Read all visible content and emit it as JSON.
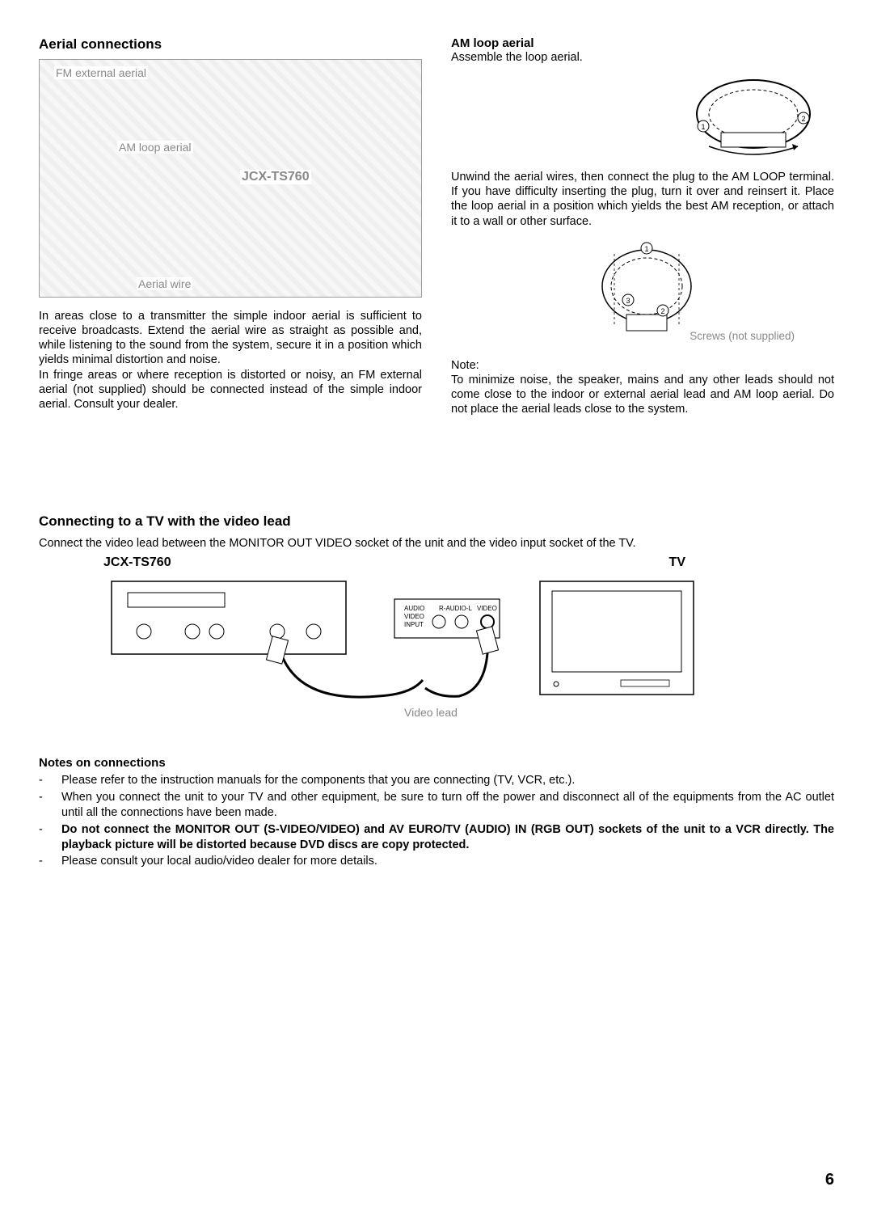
{
  "page_number": "6",
  "aerial": {
    "heading": "Aerial connections",
    "labels": {
      "fm_external": "FM external aerial",
      "am_loop": "AM loop aerial",
      "device": "JCX-TS760",
      "aerial_wire": "Aerial wire"
    },
    "left_paragraph_1": "In areas close to a transmitter the simple indoor aerial is sufficient to receive broadcasts. Extend the aerial wire as straight as possible and, while listening to the sound from the system, secure it in a position which yields minimal distortion and noise.",
    "left_paragraph_2": "In fringe areas or where reception is distorted or noisy, an FM external aerial (not supplied) should be connected instead of the simple indoor aerial. Consult your dealer."
  },
  "am_loop": {
    "title": "AM loop aerial",
    "assemble_text": "Assemble the loop aerial.",
    "unwind_text": "Unwind the aerial wires, then connect the plug to the AM LOOP terminal. If you have difficulty inserting the plug, turn it over and reinsert it. Place the loop aerial in a position which yields the best AM reception, or attach it to a wall or other surface.",
    "screws_label": "Screws (not supplied)",
    "note_label": "Note:",
    "note_text": "To minimize noise, the speaker, mains and any other leads should not come close to the indoor or external aerial lead and AM loop aerial. Do not place the aerial leads close to the system."
  },
  "tv": {
    "heading": "Connecting to a TV with the video lead",
    "intro": "Connect the video lead between the MONITOR OUT VIDEO socket of the unit and the video input socket of the TV.",
    "device_label": "JCX-TS760",
    "tv_label": "TV",
    "video_lead_label": "Video lead"
  },
  "notes": {
    "title": "Notes on connections",
    "items": [
      {
        "text": "Please refer to the instruction manuals for the components that you are connecting (TV, VCR, etc.).",
        "bold": false
      },
      {
        "text": "When you connect the unit to your TV and other equipment, be sure to turn off the power and disconnect all of the equipments from the AC outlet until all the connections have been made.",
        "bold": false
      },
      {
        "text": "Do not connect the MONITOR OUT (S-VIDEO/VIDEO) and AV EURO/TV (AUDIO) IN (RGB OUT) sockets of the unit to a VCR directly. The playback picture will be distorted because DVD discs are copy protected.",
        "bold": true
      },
      {
        "text": "Please consult your local audio/video dealer for more details.",
        "bold": false
      }
    ]
  }
}
